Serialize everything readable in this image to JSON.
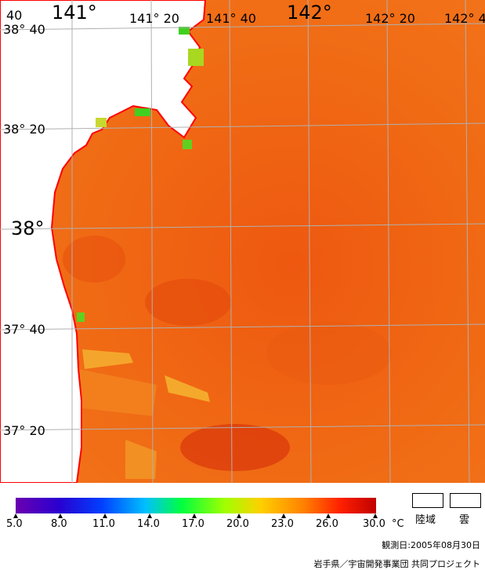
{
  "map": {
    "lon_labels": [
      "40",
      "141°",
      "141° 20",
      "141° 40",
      "142°",
      "142° 20",
      "142° 4"
    ],
    "lat_labels": [
      "38° 40",
      "38° 20",
      "38°",
      "37° 40",
      "37° 20"
    ]
  },
  "legend": {
    "ticks": [
      "5.0",
      "8.0",
      "11.0",
      "14.0",
      "17.0",
      "20.0",
      "23.0",
      "26.0",
      "30.0"
    ],
    "unit": "°C",
    "land_label": "陸域",
    "cloud_label": "雲",
    "colors": [
      "#6a00b0",
      "#2a00d0",
      "#0040ff",
      "#00c0ff",
      "#00ff40",
      "#a0ff00",
      "#ffd000",
      "#ff8000",
      "#ff2000",
      "#c00000"
    ]
  },
  "footer": {
    "observation_date": "観測日:2005年08月30日",
    "credit": "岩手県／宇宙開発事業団  共同プロジェクト"
  }
}
